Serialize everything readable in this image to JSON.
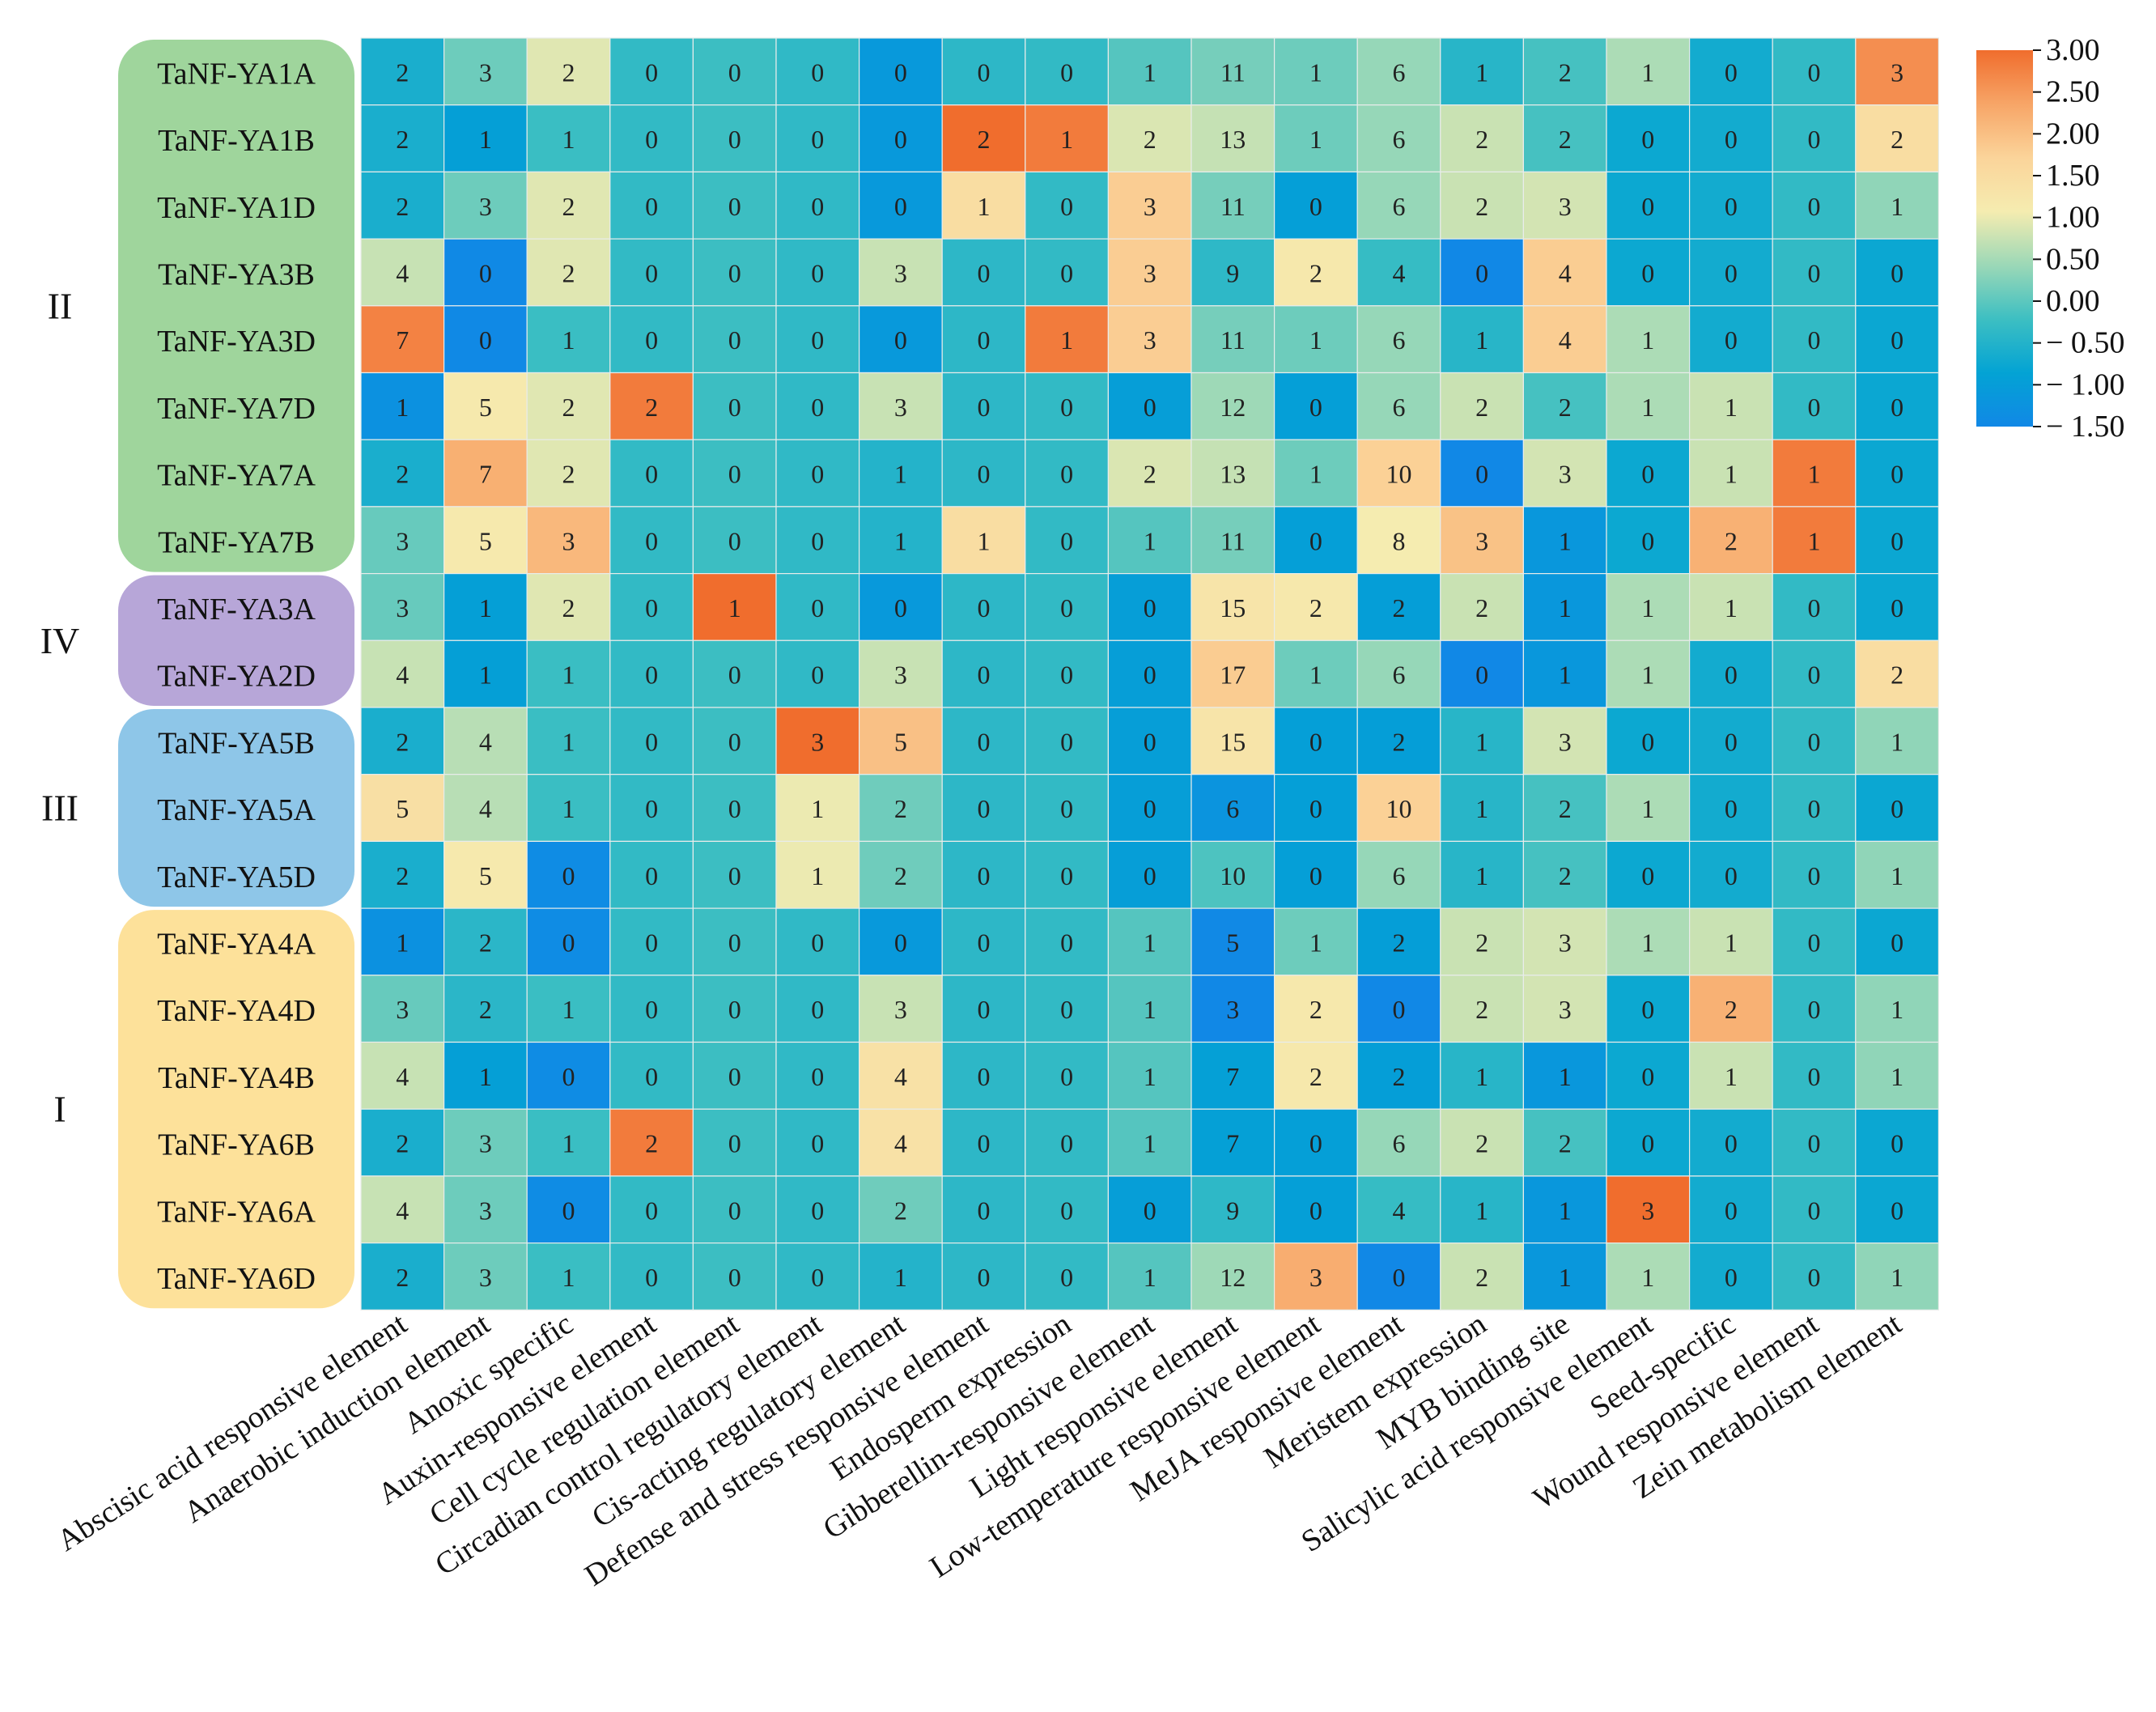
{
  "chart_data": {
    "type": "heatmap",
    "rows": [
      "TaNF-YA1A",
      "TaNF-YA1B",
      "TaNF-YA1D",
      "TaNF-YA3B",
      "TaNF-YA3D",
      "TaNF-YA7D",
      "TaNF-YA7A",
      "TaNF-YA7B",
      "TaNF-YA3A",
      "TaNF-YA2D",
      "TaNF-YA5B",
      "TaNF-YA5A",
      "TaNF-YA5D",
      "TaNF-YA4A",
      "TaNF-YA4D",
      "TaNF-YA4B",
      "TaNF-YA6B",
      "TaNF-YA6A",
      "TaNF-YA6D"
    ],
    "columns": [
      "Abscisic acid responsive element",
      "Anaerobic induction element",
      "Anoxic specific",
      "Auxin-responsive element",
      "Cell cycle regulation element",
      "Circadian control regulatory element",
      "Cis-acting regulatory element",
      "Defense and stress responsive element",
      "Endosperm expression",
      "Gibberellin-responsive element",
      "Light responsive element",
      "Low-temperature responsive element",
      "MeJA responsive element",
      "Meristem expression",
      "MYB binding site",
      "Salicylic acid responsive element",
      "Seed-specific",
      "Wound responsive element",
      "Zein metabolism element"
    ],
    "values": [
      [
        2,
        3,
        2,
        0,
        0,
        0,
        0,
        0,
        0,
        1,
        11,
        1,
        6,
        1,
        2,
        1,
        0,
        0,
        3
      ],
      [
        2,
        1,
        1,
        0,
        0,
        0,
        0,
        2,
        1,
        2,
        13,
        1,
        6,
        2,
        2,
        0,
        0,
        0,
        2
      ],
      [
        2,
        3,
        2,
        0,
        0,
        0,
        0,
        1,
        0,
        3,
        11,
        0,
        6,
        2,
        3,
        0,
        0,
        0,
        1
      ],
      [
        4,
        0,
        2,
        0,
        0,
        0,
        3,
        0,
        0,
        3,
        9,
        2,
        4,
        0,
        4,
        0,
        0,
        0,
        0
      ],
      [
        7,
        0,
        1,
        0,
        0,
        0,
        0,
        0,
        1,
        3,
        11,
        1,
        6,
        1,
        4,
        1,
        0,
        0,
        0
      ],
      [
        1,
        5,
        2,
        2,
        0,
        0,
        3,
        0,
        0,
        0,
        12,
        0,
        6,
        2,
        2,
        1,
        1,
        0,
        0
      ],
      [
        2,
        7,
        2,
        0,
        0,
        0,
        1,
        0,
        0,
        2,
        13,
        1,
        10,
        0,
        3,
        0,
        1,
        1,
        0
      ],
      [
        3,
        5,
        3,
        0,
        0,
        0,
        1,
        1,
        0,
        1,
        11,
        0,
        8,
        3,
        1,
        0,
        2,
        1,
        0
      ],
      [
        3,
        1,
        2,
        0,
        1,
        0,
        0,
        0,
        0,
        0,
        15,
        2,
        2,
        2,
        1,
        1,
        1,
        0,
        0
      ],
      [
        4,
        1,
        1,
        0,
        0,
        0,
        3,
        0,
        0,
        0,
        17,
        1,
        6,
        0,
        1,
        1,
        0,
        0,
        2
      ],
      [
        2,
        4,
        1,
        0,
        0,
        3,
        5,
        0,
        0,
        0,
        15,
        0,
        2,
        1,
        3,
        0,
        0,
        0,
        1
      ],
      [
        5,
        4,
        1,
        0,
        0,
        1,
        2,
        0,
        0,
        0,
        6,
        0,
        10,
        1,
        2,
        1,
        0,
        0,
        0
      ],
      [
        2,
        5,
        0,
        0,
        0,
        1,
        2,
        0,
        0,
        0,
        10,
        0,
        6,
        1,
        2,
        0,
        0,
        0,
        1
      ],
      [
        1,
        2,
        0,
        0,
        0,
        0,
        0,
        0,
        0,
        1,
        5,
        1,
        2,
        2,
        3,
        1,
        1,
        0,
        0
      ],
      [
        3,
        2,
        1,
        0,
        0,
        0,
        3,
        0,
        0,
        1,
        3,
        2,
        0,
        2,
        3,
        0,
        2,
        0,
        1
      ],
      [
        4,
        1,
        0,
        0,
        0,
        0,
        4,
        0,
        0,
        1,
        7,
        2,
        2,
        1,
        1,
        0,
        1,
        0,
        1
      ],
      [
        2,
        3,
        1,
        2,
        0,
        0,
        4,
        0,
        0,
        1,
        7,
        0,
        6,
        2,
        2,
        0,
        0,
        0,
        0
      ],
      [
        4,
        3,
        0,
        0,
        0,
        0,
        2,
        0,
        0,
        0,
        9,
        0,
        4,
        1,
        1,
        3,
        0,
        0,
        0
      ],
      [
        2,
        3,
        1,
        0,
        0,
        0,
        1,
        0,
        0,
        1,
        12,
        3,
        0,
        2,
        1,
        1,
        0,
        0,
        1
      ]
    ],
    "groups": [
      {
        "label": "II",
        "rows": [
          0,
          7
        ],
        "color": "#9fd59c"
      },
      {
        "label": "IV",
        "rows": [
          8,
          9
        ],
        "color": "#b7a6d8"
      },
      {
        "label": "III",
        "rows": [
          10,
          12
        ],
        "color": "#8ec6e8"
      },
      {
        "label": "I",
        "rows": [
          13,
          18
        ],
        "color": "#fde19a"
      }
    ],
    "colorbar": {
      "ticks": [
        "3.00",
        "2.50",
        "2.00",
        "1.50",
        "1.00",
        "0.50",
        "0.00",
        "− 0.50",
        "− 1.00",
        "− 1.50"
      ],
      "range": [
        -1.5,
        3.0
      ],
      "colors": [
        "#1188e6",
        "#03a3d4",
        "#3dbfc2",
        "#9bd8b7",
        "#f5ecb0",
        "#fbd49a",
        "#f7a567",
        "#f06d2d"
      ]
    }
  }
}
